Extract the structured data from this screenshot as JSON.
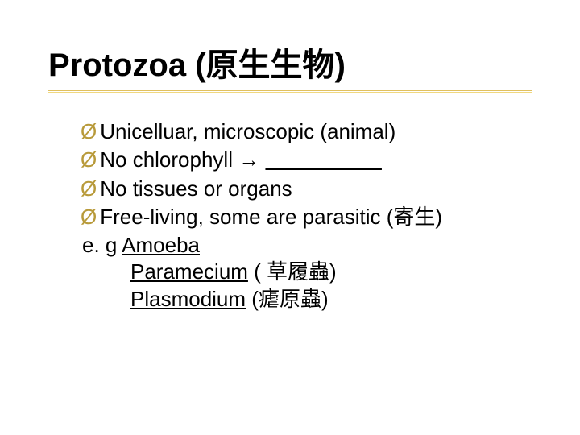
{
  "title": {
    "en": "Protozoa",
    "paren_open": "  (",
    "cn": "原生生物",
    "paren_close": ")",
    "font_size": 40,
    "color": "#000000"
  },
  "underline": {
    "colors": [
      "#c0a040",
      "#e0c060",
      "#f0d880"
    ],
    "count": 3
  },
  "bullets": {
    "marker": "Ø",
    "marker_color": "#b89a3a",
    "items": [
      {
        "text": "Unicelluar, microscopic (animal)"
      },
      {
        "prefix": "No chlorophyll ",
        "arrow": "→",
        "blank": "                    "
      },
      {
        "text": "No tissues or organs"
      },
      {
        "prefix": "Free-living, some are parasitic (",
        "cn": "寄生",
        "suffix": ")"
      }
    ]
  },
  "examples": {
    "lead": " e. g ",
    "items": [
      {
        "name": "Amoeba",
        "note": ""
      },
      {
        "name": "Paramecium",
        "note": " ( 草履蟲)"
      },
      {
        "name": "Plasmodium",
        "note": " (瘧原蟲)"
      }
    ]
  },
  "styling": {
    "background_color": "#ffffff",
    "text_color": "#000000",
    "body_font_size": 26,
    "slide_width": 720,
    "slide_height": 540
  }
}
